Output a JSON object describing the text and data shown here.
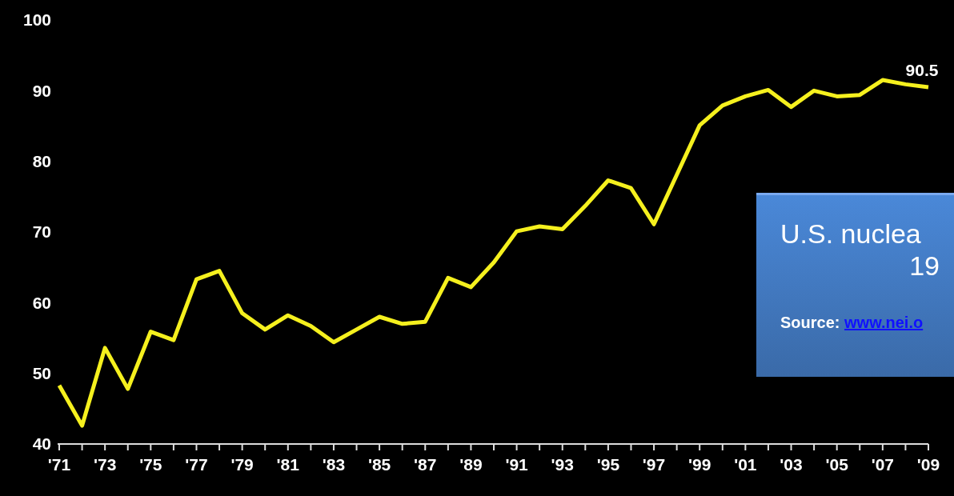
{
  "chart_data": {
    "type": "line",
    "categories": [
      "'71",
      null,
      "'73",
      null,
      "'75",
      null,
      "'77",
      null,
      "'79",
      null,
      "'81",
      null,
      "'83",
      null,
      "'85",
      null,
      "'87",
      null,
      "'89",
      null,
      "'91",
      null,
      "'93",
      null,
      "'95",
      null,
      "'97",
      null,
      "'99",
      null,
      "'01",
      null,
      "'03",
      null,
      "'05",
      null,
      "'07",
      null,
      "'09"
    ],
    "series": [
      {
        "color": "#f5f01e",
        "values": [
          48.3,
          42.6,
          53.6,
          47.8,
          55.9,
          54.7,
          63.3,
          64.5,
          58.5,
          56.2,
          58.2,
          56.7,
          54.4,
          56.2,
          58.0,
          57.0,
          57.3,
          63.5,
          62.2,
          65.7,
          70.1,
          70.8,
          70.4,
          73.7,
          77.3,
          76.2,
          71.1,
          78.1,
          85.1,
          87.9,
          89.2,
          90.1,
          87.7,
          90.0,
          89.2,
          89.4,
          91.5,
          90.9,
          90.5
        ]
      }
    ],
    "ylim": [
      40,
      100
    ],
    "yticks": [
      40,
      50,
      60,
      70,
      80,
      90,
      100
    ],
    "grid": false,
    "marker": "none",
    "line_style": "solid",
    "annotations": [
      {
        "text": "90.5",
        "x": "'09",
        "y": 90.5
      },
      "U.S. nuclea",
      "19",
      "Source: www.nei.o"
    ]
  }
}
